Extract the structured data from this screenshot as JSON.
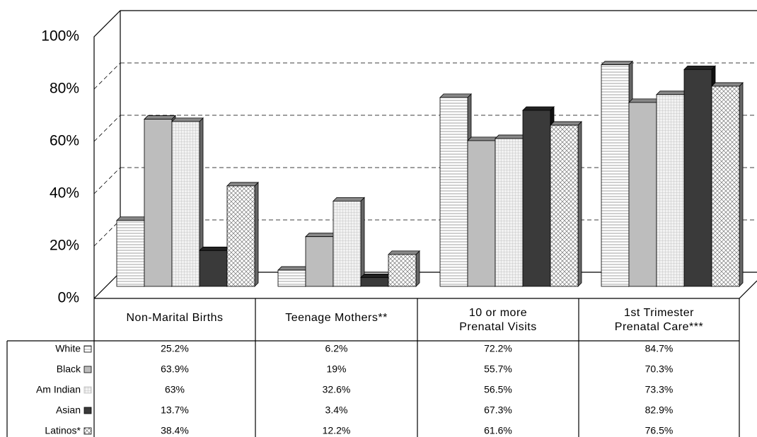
{
  "chart_data": {
    "type": "bar3d",
    "categories": [
      [
        "Non-Marital Births"
      ],
      [
        "Teenage Mothers**"
      ],
      [
        "10 or more",
        "Prenatal Visits"
      ],
      [
        "1st Trimester",
        "Prenatal Care***"
      ]
    ],
    "series": [
      {
        "name": "White",
        "color": "#ffffff",
        "values": [
          25.2,
          6.2,
          72.2,
          84.7
        ],
        "value_labels": [
          "25.2%",
          "6.2%",
          "72.2%",
          "84.7%"
        ]
      },
      {
        "name": "Black",
        "color": "#bdbdbd",
        "values": [
          63.9,
          19,
          55.7,
          70.3
        ],
        "value_labels": [
          "63.9%",
          "19%",
          "55.7%",
          "70.3%"
        ]
      },
      {
        "name": "Am Indian",
        "color": "#e4e4e4",
        "values": [
          63,
          32.6,
          56.5,
          73.3
        ],
        "value_labels": [
          "63%",
          "32.6%",
          "56.5%",
          "73.3%"
        ]
      },
      {
        "name": "Asian",
        "color": "#3a3a3a",
        "values": [
          13.7,
          3.4,
          67.3,
          82.9
        ],
        "value_labels": [
          "13.7%",
          "3.4%",
          "67.3%",
          "82.9%"
        ]
      },
      {
        "name": "Latinos*",
        "color": "#f4f4f4",
        "values": [
          38.4,
          12.2,
          61.6,
          76.5
        ],
        "value_labels": [
          "38.4%",
          "12.2%",
          "61.6%",
          "76.5%"
        ]
      }
    ],
    "ylim": [
      0,
      100
    ],
    "yticks": [
      {
        "value": 0,
        "label": "0%"
      },
      {
        "value": 20,
        "label": "20%"
      },
      {
        "value": 40,
        "label": "40%"
      },
      {
        "value": 60,
        "label": "60%"
      },
      {
        "value": 80,
        "label": "80%"
      },
      {
        "value": 100,
        "label": "100%"
      }
    ],
    "grid": true
  }
}
